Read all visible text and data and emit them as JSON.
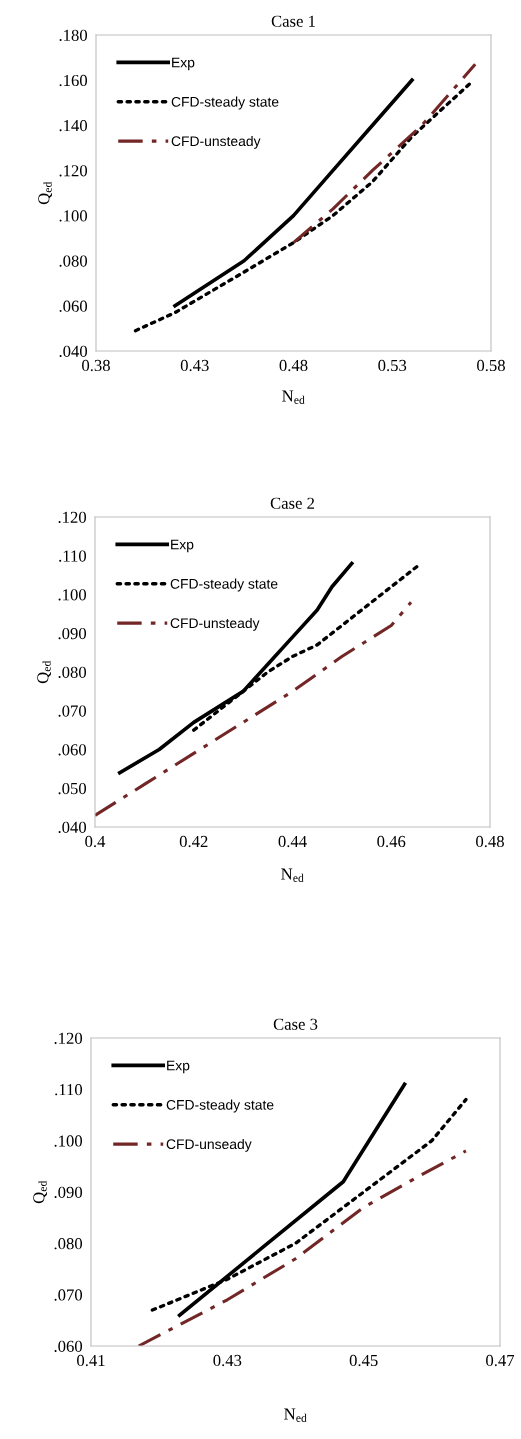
{
  "chart_data": [
    {
      "type": "line",
      "title": "Case 1",
      "xlabel": "N$_{ed}$",
      "ylabel": "Q$_{ed}$",
      "xlim": [
        0.38,
        0.58
      ],
      "xticks": [
        {
          "value": 0.38,
          "label": "0.38"
        },
        {
          "value": 0.43,
          "label": "0.43"
        },
        {
          "value": 0.48,
          "label": "0.48"
        },
        {
          "value": 0.53,
          "label": "0.53"
        },
        {
          "value": 0.58,
          "label": "0.58"
        }
      ],
      "ylim": [
        0.04,
        0.18
      ],
      "yticks": [
        {
          "value": 0.04,
          "label": ".040"
        },
        {
          "value": 0.06,
          "label": ".060"
        },
        {
          "value": 0.08,
          "label": ".080"
        },
        {
          "value": 0.1,
          "label": ".100"
        },
        {
          "value": 0.12,
          "label": ".120"
        },
        {
          "value": 0.14,
          "label": ".140"
        },
        {
          "value": 0.16,
          "label": ".160"
        },
        {
          "value": 0.18,
          "label": ".180"
        }
      ],
      "grid": false,
      "legend": "top left",
      "series": [
        {
          "name": "Exp",
          "color": "#000000",
          "line_style": "solid",
          "x": [
            0.42,
            0.455,
            0.48,
            0.5,
            0.52,
            0.54
          ],
          "values": [
            0.06,
            0.08,
            0.1,
            0.12,
            0.14,
            0.16
          ]
        },
        {
          "name": "CFD-steady state",
          "color": "#000000",
          "line_style": "dotted",
          "x": [
            0.4,
            0.42,
            0.455,
            0.48,
            0.5,
            0.52,
            0.54,
            0.57
          ],
          "values": [
            0.049,
            0.057,
            0.075,
            0.088,
            0.1,
            0.115,
            0.135,
            0.159
          ]
        },
        {
          "name": "CFD-unsteady",
          "color": "#722626",
          "line_style": "dashdot",
          "x": [
            0.48,
            0.5,
            0.52,
            0.545,
            0.572
          ],
          "values": [
            0.088,
            0.103,
            0.12,
            0.14,
            0.167
          ]
        }
      ]
    },
    {
      "type": "line",
      "title": "Case 2",
      "xlabel": "N$_{ed}$",
      "ylabel": "Q$_{ed}$",
      "xlim": [
        0.4,
        0.48
      ],
      "xticks": [
        {
          "value": 0.4,
          "label": "0.4"
        },
        {
          "value": 0.42,
          "label": "0.42"
        },
        {
          "value": 0.44,
          "label": "0.44"
        },
        {
          "value": 0.46,
          "label": "0.46"
        },
        {
          "value": 0.48,
          "label": "0.48"
        }
      ],
      "ylim": [
        0.04,
        0.12
      ],
      "yticks": [
        {
          "value": 0.04,
          "label": ".040"
        },
        {
          "value": 0.05,
          "label": ".050"
        },
        {
          "value": 0.06,
          "label": ".060"
        },
        {
          "value": 0.07,
          "label": ".070"
        },
        {
          "value": 0.08,
          "label": ".080"
        },
        {
          "value": 0.09,
          "label": ".090"
        },
        {
          "value": 0.1,
          "label": ".100"
        },
        {
          "value": 0.11,
          "label": ".110"
        },
        {
          "value": 0.12,
          "label": ".120"
        }
      ],
      "grid": false,
      "legend": "top left",
      "series": [
        {
          "name": "Exp",
          "color": "#000000",
          "line_style": "solid",
          "x": [
            0.405,
            0.413,
            0.42,
            0.43,
            0.435,
            0.44,
            0.445,
            0.448,
            0.452
          ],
          "values": [
            0.054,
            0.06,
            0.067,
            0.075,
            0.082,
            0.089,
            0.096,
            0.102,
            0.108
          ]
        },
        {
          "name": "CFD-steady state",
          "color": "#000000",
          "line_style": "dotted",
          "x": [
            0.42,
            0.43,
            0.435,
            0.44,
            0.445,
            0.45,
            0.455,
            0.46,
            0.466
          ],
          "values": [
            0.065,
            0.075,
            0.08,
            0.084,
            0.087,
            0.092,
            0.097,
            0.102,
            0.108
          ]
        },
        {
          "name": "CFD-unsteady",
          "color": "#722626",
          "line_style": "dashdot",
          "x": [
            0.4,
            0.41,
            0.42,
            0.43,
            0.44,
            0.45,
            0.46,
            0.464
          ],
          "values": [
            0.043,
            0.051,
            0.059,
            0.067,
            0.075,
            0.084,
            0.092,
            0.098
          ]
        }
      ]
    },
    {
      "type": "line",
      "title": "Case 3",
      "xlabel": "N$_{ed}$",
      "ylabel": "Q$_{ed}$",
      "xlim": [
        0.41,
        0.47
      ],
      "xticks": [
        {
          "value": 0.41,
          "label": "0.41"
        },
        {
          "value": 0.43,
          "label": "0.43"
        },
        {
          "value": 0.45,
          "label": "0.45"
        },
        {
          "value": 0.47,
          "label": "0.47"
        }
      ],
      "ylim": [
        0.06,
        0.12
      ],
      "yticks": [
        {
          "value": 0.06,
          "label": ".060"
        },
        {
          "value": 0.07,
          "label": ".070"
        },
        {
          "value": 0.08,
          "label": ".080"
        },
        {
          "value": 0.09,
          "label": ".090"
        },
        {
          "value": 0.1,
          "label": ".100"
        },
        {
          "value": 0.11,
          "label": ".110"
        },
        {
          "value": 0.12,
          "label": ".120"
        }
      ],
      "grid": false,
      "legend": "top left",
      "series": [
        {
          "name": "Exp",
          "color": "#000000",
          "line_style": "solid",
          "x": [
            0.423,
            0.435,
            0.447,
            0.456
          ],
          "values": [
            0.066,
            0.079,
            0.092,
            0.111
          ]
        },
        {
          "name": "CFD-steady state",
          "color": "#000000",
          "line_style": "dotted",
          "x": [
            0.419,
            0.43,
            0.44,
            0.45,
            0.46,
            0.465
          ],
          "values": [
            0.067,
            0.073,
            0.08,
            0.09,
            0.1,
            0.108
          ]
        },
        {
          "name": "CFD-unseady",
          "color": "#722626",
          "line_style": "dashdot",
          "x": [
            0.417,
            0.43,
            0.44,
            0.45,
            0.458,
            0.465
          ],
          "values": [
            0.06,
            0.069,
            0.077,
            0.087,
            0.093,
            0.098
          ]
        }
      ]
    }
  ]
}
